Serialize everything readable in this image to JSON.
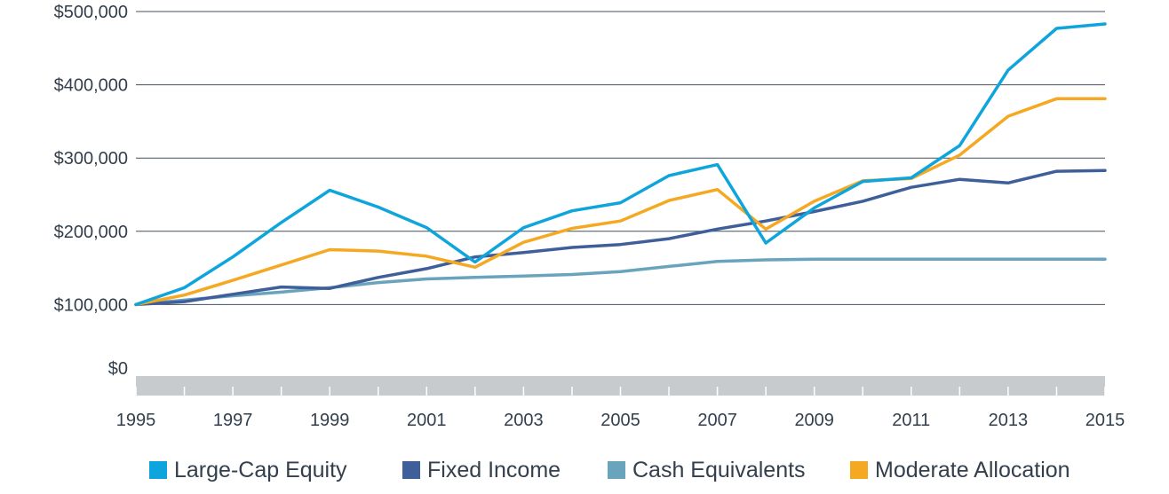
{
  "chart_data": {
    "type": "line",
    "title": "",
    "xlabel": "",
    "ylabel": "",
    "x": [
      1995,
      1996,
      1997,
      1998,
      1999,
      2000,
      2001,
      2002,
      2003,
      2004,
      2005,
      2006,
      2007,
      2008,
      2009,
      2010,
      2011,
      2012,
      2013,
      2014,
      2015
    ],
    "xlim": [
      1995,
      2015
    ],
    "ylim": [
      0,
      500000
    ],
    "x_tick_values": [
      1995,
      1997,
      1999,
      2001,
      2003,
      2005,
      2007,
      2009,
      2011,
      2013,
      2015
    ],
    "x_tick_labels": [
      "1995",
      "1997",
      "1999",
      "2001",
      "2003",
      "2005",
      "2007",
      "2009",
      "2011",
      "2013",
      "2015"
    ],
    "y_tick_values": [
      0,
      100000,
      200000,
      300000,
      400000,
      500000
    ],
    "y_tick_labels": [
      "$0",
      "$100,000",
      "$200,000",
      "$300,000",
      "$400,000",
      "$500,000"
    ],
    "grid": true,
    "legend_position": "bottom",
    "series": [
      {
        "name": "Large-Cap Equity",
        "color": "#0ea5dc",
        "values": [
          100000,
          123000,
          165000,
          212000,
          256000,
          233000,
          205000,
          158000,
          205000,
          228000,
          239000,
          276000,
          291000,
          184000,
          232000,
          268000,
          273000,
          317000,
          420000,
          477000,
          483000
        ]
      },
      {
        "name": "Fixed Income",
        "color": "#3e5f9a",
        "values": [
          100000,
          104000,
          114000,
          124000,
          122000,
          137000,
          149000,
          165000,
          171000,
          178000,
          182000,
          190000,
          203000,
          214000,
          227000,
          241000,
          260000,
          271000,
          266000,
          282000,
          283000
        ]
      },
      {
        "name": "Cash Equivalents",
        "color": "#6aa3bc",
        "values": [
          100000,
          106000,
          112000,
          117000,
          123000,
          130000,
          135000,
          137000,
          139000,
          141000,
          145000,
          152000,
          159000,
          161000,
          162000,
          162000,
          162000,
          162000,
          162000,
          162000,
          162000
        ]
      },
      {
        "name": "Moderate Allocation",
        "color": "#f5a822",
        "values": [
          100000,
          113000,
          133000,
          154000,
          175000,
          173000,
          166000,
          151000,
          185000,
          204000,
          214000,
          242000,
          257000,
          203000,
          241000,
          269000,
          272000,
          304000,
          357000,
          381000,
          381000
        ]
      }
    ]
  }
}
